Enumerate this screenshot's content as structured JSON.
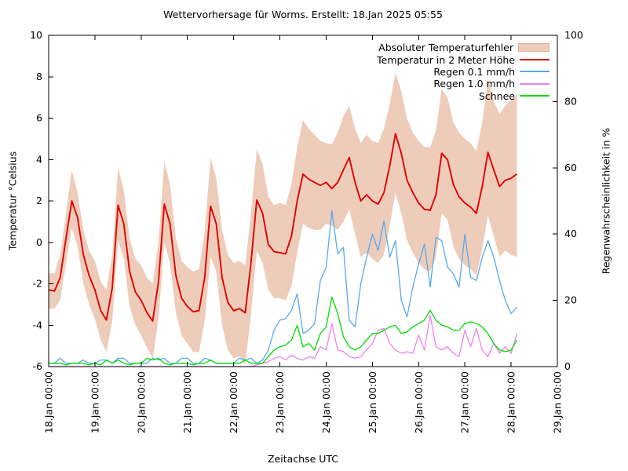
{
  "chart_data": {
    "type": "line",
    "title": "Wettervorhersage für Worms. Erstellt: 18.Jan 2025 05:55",
    "xlabel": "Zeitachse UTC",
    "ylabel_left": "Temperatur °Celsius",
    "ylabel_right": "Regenwahrscheinlichkeit in %",
    "x_ticks": [
      "18.Jan 00:00",
      "19.Jan 00:00",
      "20.Jan 00:00",
      "21.Jan 00:00",
      "22.Jan 00:00",
      "23.Jan 00:00",
      "24.Jan 00:00",
      "25.Jan 00:00",
      "26.Jan 00:00",
      "27.Jan 00:00",
      "28.Jan 00:00",
      "29.Jan 00:00"
    ],
    "x_hours_total": 264,
    "step_hours": 3,
    "y_left": {
      "min": -6,
      "max": 10,
      "ticks": [
        -6,
        -4,
        -2,
        0,
        2,
        4,
        6,
        8,
        10
      ]
    },
    "y_right": {
      "min": 0,
      "max": 100,
      "ticks": [
        0,
        20,
        40,
        60,
        80,
        100
      ]
    },
    "grid": false,
    "legend_position": "top-right-inside",
    "legend": [
      {
        "label": "Absoluter Temperaturfehler",
        "color": "#eeccba",
        "swatch": "band"
      },
      {
        "label": "Temperatur in 2 Meter Höhe",
        "color": "#e00000",
        "swatch": "line"
      },
      {
        "label": "Regen 0.1 mm/h",
        "color": "#58a8f0",
        "swatch": "line"
      },
      {
        "label": "Regen 1.0 mm/h",
        "color": "#ee82ee",
        "swatch": "line"
      },
      {
        "label": "Schnee",
        "color": "#00dd00",
        "swatch": "line"
      }
    ],
    "series": {
      "temperature_c": [
        -2.3,
        -2.35,
        -1.7,
        0.2,
        2.0,
        1.2,
        -0.6,
        -1.6,
        -2.3,
        -3.3,
        -3.75,
        -2.2,
        1.8,
        0.9,
        -1.4,
        -2.4,
        -2.8,
        -3.4,
        -3.8,
        -1.9,
        1.85,
        0.9,
        -1.6,
        -2.7,
        -3.1,
        -3.35,
        -3.3,
        -1.7,
        1.75,
        0.9,
        -1.7,
        -2.9,
        -3.3,
        -3.2,
        -3.4,
        -1.0,
        2.05,
        1.4,
        -0.1,
        -0.45,
        -0.5,
        -0.55,
        0.3,
        2.0,
        3.3,
        3.05,
        2.9,
        2.75,
        2.9,
        2.6,
        2.9,
        3.5,
        4.1,
        2.9,
        2.0,
        2.3,
        2.0,
        1.85,
        2.4,
        3.7,
        5.25,
        4.3,
        3.0,
        2.4,
        1.9,
        1.6,
        1.55,
        2.3,
        4.3,
        4.0,
        2.8,
        2.2,
        1.9,
        1.7,
        1.4,
        2.7,
        4.35,
        3.5,
        2.7,
        3.0,
        3.1,
        3.3
      ],
      "error_upper_c": [
        -1.5,
        -1.5,
        -0.6,
        1.4,
        3.5,
        2.4,
        0.6,
        -0.4,
        -0.9,
        -1.9,
        -2.3,
        -0.6,
        3.6,
        2.5,
        0.2,
        -0.8,
        -1.1,
        -1.7,
        -2.0,
        0.0,
        3.9,
        2.8,
        0.2,
        -0.9,
        -1.2,
        -1.4,
        -1.3,
        0.5,
        4.1,
        3.1,
        0.6,
        -0.6,
        -1.0,
        -0.9,
        -1.1,
        1.4,
        4.5,
        3.8,
        2.2,
        1.8,
        1.9,
        1.8,
        2.8,
        4.6,
        5.9,
        5.5,
        5.2,
        4.9,
        4.8,
        4.75,
        5.3,
        6.1,
        6.6,
        5.5,
        4.8,
        5.2,
        4.9,
        4.8,
        5.5,
        6.7,
        8.2,
        7.3,
        6.0,
        5.3,
        4.9,
        4.6,
        4.6,
        5.4,
        7.4,
        7.0,
        5.8,
        5.3,
        5.0,
        4.8,
        4.4,
        5.8,
        7.9,
        6.8,
        6.2,
        6.6,
        6.9,
        7.1
      ],
      "error_lower_c": [
        -3.2,
        -3.2,
        -2.8,
        -1.0,
        0.7,
        -0.2,
        -2.0,
        -3.0,
        -3.7,
        -4.7,
        -5.3,
        -3.8,
        0.1,
        -0.8,
        -3.1,
        -4.0,
        -4.5,
        -5.1,
        -5.6,
        -3.7,
        0.0,
        -1.0,
        -3.4,
        -4.5,
        -4.9,
        -5.3,
        -5.3,
        -3.8,
        -0.7,
        -1.4,
        -4.0,
        -5.2,
        -5.6,
        -5.5,
        -5.9,
        -3.5,
        -0.4,
        -1.0,
        -2.3,
        -2.7,
        -2.7,
        -2.8,
        -2.1,
        -0.5,
        0.9,
        0.7,
        0.6,
        0.6,
        0.9,
        0.8,
        0.6,
        1.0,
        1.6,
        0.4,
        -0.7,
        -0.5,
        -0.8,
        -1.0,
        -0.6,
        0.8,
        2.4,
        1.4,
        0.1,
        -0.5,
        -1.0,
        -1.3,
        -1.4,
        -0.7,
        1.4,
        1.1,
        -0.2,
        -0.8,
        -1.1,
        -1.3,
        -1.6,
        -0.3,
        1.3,
        0.3,
        -0.7,
        -0.4,
        -0.6,
        -0.7
      ],
      "rain01_pct": [
        1,
        1,
        2.5,
        1,
        1,
        1,
        2,
        1,
        1,
        2,
        2,
        1,
        2.5,
        2.5,
        1,
        1,
        1,
        1,
        2.5,
        2,
        2.5,
        1,
        1,
        2.5,
        2.5,
        1,
        1,
        2.5,
        2,
        1,
        1,
        1,
        1,
        2.5,
        2,
        2.5,
        1,
        2,
        5,
        11,
        14,
        14.5,
        17,
        22,
        10,
        11,
        13,
        26,
        30,
        47,
        34,
        36,
        14,
        12,
        25,
        33,
        40,
        35,
        44,
        33,
        38,
        20,
        15,
        24,
        31,
        37,
        24,
        39,
        38,
        30,
        28,
        24,
        40,
        27,
        26,
        33,
        38,
        33,
        26,
        20,
        16,
        18
      ],
      "rain10_pct": [
        0,
        0,
        0,
        0,
        0,
        0,
        0,
        0,
        0,
        0,
        0,
        0,
        0,
        0,
        0,
        0,
        0,
        0,
        0,
        0,
        0,
        0,
        0,
        0,
        0,
        0,
        0,
        0,
        0,
        0,
        0,
        0,
        0,
        0,
        0,
        0,
        0.5,
        1,
        1.5,
        2.5,
        3,
        2,
        3.5,
        2.5,
        2,
        3,
        2.5,
        6,
        5,
        13,
        5,
        4.5,
        3,
        2.5,
        3,
        5,
        7,
        11,
        11.5,
        7,
        5,
        4,
        4.5,
        4,
        9.5,
        5,
        15.5,
        6,
        5,
        6,
        4,
        3,
        11,
        6,
        11.5,
        5,
        3,
        7,
        4,
        6,
        4,
        10
      ],
      "snow_pct": [
        1,
        1,
        1,
        0.5,
        1,
        1,
        1,
        0.5,
        1,
        0.5,
        2,
        1,
        2,
        1,
        0.5,
        1,
        1,
        2.5,
        2,
        2.5,
        1,
        0.5,
        1,
        1,
        1,
        0.5,
        1,
        1,
        2,
        1,
        1,
        1,
        1,
        1,
        2,
        1,
        1,
        1,
        3,
        5,
        6,
        6.5,
        8,
        12.5,
        6,
        7,
        5,
        10,
        12,
        21,
        16,
        9,
        6,
        5,
        6,
        8,
        10,
        10,
        11,
        12,
        12.5,
        10,
        10.5,
        12,
        13,
        14,
        17,
        14,
        12.5,
        12,
        11,
        11,
        13,
        13.5,
        13,
        12,
        10,
        7,
        5,
        4.5,
        5,
        8
      ]
    },
    "colors": {
      "error_band": "#eeccba",
      "error_band_border": "#dfb095",
      "temperature": "#e00000",
      "rain01": "#58a8f0",
      "rain10": "#ee82ee",
      "snow": "#00dd00",
      "axis": "#000000"
    }
  }
}
